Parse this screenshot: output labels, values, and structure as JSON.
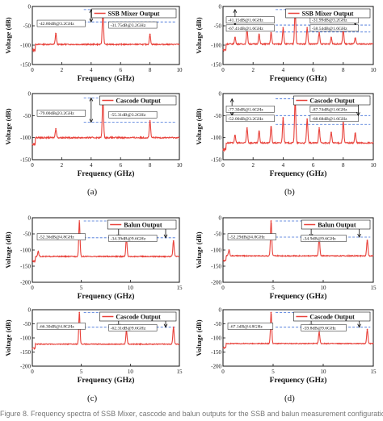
{
  "chart_data": [
    {
      "id": "a_top",
      "type": "line",
      "panel": "a",
      "legend": "SSB Mixer Output",
      "xlabel": "Frequency (GHz)",
      "ylabel": "Voltage (dB)",
      "xlim": [
        0,
        10
      ],
      "ylim": [
        -150,
        0
      ],
      "xticks": [
        0,
        2,
        4,
        6,
        8,
        10
      ],
      "yticks": [
        0,
        -50,
        -100,
        -150
      ],
      "floor": -98,
      "peaks": [
        {
          "x": 1.6,
          "y": -70
        },
        {
          "x": 4.8,
          "y": -8
        },
        {
          "x": 8.0,
          "y": -72
        }
      ],
      "ref_lines": [
        -8,
        -40
      ],
      "arrows": [
        {
          "x": 4.0,
          "y1": -8,
          "y2": -40
        }
      ],
      "annotations": [
        {
          "text": "-42.80dB@3.2GHz"
        },
        {
          "text": "-31.75dB@3.2GHz"
        }
      ]
    },
    {
      "id": "b_top",
      "type": "line",
      "panel": "b",
      "legend": "SSB Mixer Output",
      "xlabel": "Frequency (GHz)",
      "ylabel": "Voltage (dB)",
      "xlim": [
        0,
        10
      ],
      "ylim": [
        -150,
        0
      ],
      "xticks": [
        0,
        2,
        4,
        6,
        8,
        10
      ],
      "yticks": [
        0,
        -50,
        -100,
        -150
      ],
      "floor": -97,
      "peaks": [
        {
          "x": 0.8,
          "y": -80
        },
        {
          "x": 1.6,
          "y": -60
        },
        {
          "x": 2.4,
          "y": -72
        },
        {
          "x": 3.2,
          "y": -68
        },
        {
          "x": 4.0,
          "y": -55
        },
        {
          "x": 4.8,
          "y": -8
        },
        {
          "x": 5.6,
          "y": -55
        },
        {
          "x": 6.4,
          "y": -68
        },
        {
          "x": 7.2,
          "y": -80
        },
        {
          "x": 8.0,
          "y": -58
        },
        {
          "x": 8.8,
          "y": -82
        }
      ],
      "ref_lines": [
        -8,
        -48,
        -66
      ],
      "arrows": [
        {
          "x": 0.8,
          "y1": -8,
          "y2": -48
        },
        {
          "x": 8.8,
          "y1": -8,
          "y2": -48
        }
      ],
      "annotations": [
        {
          "text": "-41.15dB@1.6GHz"
        },
        {
          "text": "-31.99dB@3.2GHz"
        },
        {
          "text": "-67.41dB@1.6GHz"
        },
        {
          "text": "-58.54dB@1.6GHz"
        }
      ]
    },
    {
      "id": "a_bot",
      "type": "line",
      "panel": "a",
      "legend": "Cascode Output",
      "xlabel": "Frequency (GHz)",
      "ylabel": "Voltage (dB)",
      "xlim": [
        0,
        10
      ],
      "ylim": [
        -150,
        0
      ],
      "xticks": [
        0,
        2,
        4,
        6,
        8,
        10
      ],
      "yticks": [
        0,
        -50,
        -100,
        -150
      ],
      "floor": -100,
      "peaks": [
        {
          "x": 1.6,
          "y": -80
        },
        {
          "x": 4.8,
          "y": -10
        },
        {
          "x": 8.0,
          "y": -62
        }
      ],
      "ref_lines": [
        -10,
        -65
      ],
      "arrows": [
        {
          "x": 4.0,
          "y1": -10,
          "y2": -65
        }
      ],
      "annotations": [
        {
          "text": "-79.00dB@3.2GHz"
        },
        {
          "text": "-55.31dB@3.2GHz"
        }
      ]
    },
    {
      "id": "b_bot",
      "type": "line",
      "panel": "b",
      "legend": "Cascode Output",
      "xlabel": "Frequency (GHz)",
      "ylabel": "Voltage (dB)",
      "xlim": [
        0,
        10
      ],
      "ylim": [
        -150,
        0
      ],
      "xticks": [
        0,
        2,
        4,
        6,
        8,
        10
      ],
      "yticks": [
        0,
        -50,
        -100,
        -150
      ],
      "floor": -112,
      "peaks": [
        {
          "x": 0.8,
          "y": -95
        },
        {
          "x": 1.6,
          "y": -78
        },
        {
          "x": 2.4,
          "y": -85
        },
        {
          "x": 3.2,
          "y": -75
        },
        {
          "x": 4.0,
          "y": -55
        },
        {
          "x": 4.8,
          "y": -12
        },
        {
          "x": 5.6,
          "y": -58
        },
        {
          "x": 6.4,
          "y": -78
        },
        {
          "x": 7.2,
          "y": -88
        },
        {
          "x": 8.0,
          "y": -62
        },
        {
          "x": 8.8,
          "y": -90
        }
      ],
      "ref_lines": [
        -12,
        -50,
        -70
      ],
      "arrows": [
        {
          "x": 0.6,
          "y1": -12,
          "y2": -50
        },
        {
          "x": 9.0,
          "y1": -12,
          "y2": -50
        }
      ],
      "annotations": [
        {
          "text": "-77.30dB@1.6GHz"
        },
        {
          "text": "-87.74dB@1.6GHz"
        },
        {
          "text": "-52.00dB@3.2GHz"
        },
        {
          "text": "-68.68dB@1.6GHz"
        }
      ]
    },
    {
      "id": "c_top",
      "type": "line",
      "panel": "c",
      "legend": "Balun Output",
      "xlabel": "Frequency (GHz)",
      "ylabel": "Voltage (dB)",
      "xlim": [
        0,
        15
      ],
      "ylim": [
        -200,
        0
      ],
      "xticks": [
        0,
        5,
        10,
        15
      ],
      "yticks": [
        0,
        -50,
        -100,
        -150,
        -200
      ],
      "floor": -120,
      "peaks": [
        {
          "x": 0.6,
          "y": -105
        },
        {
          "x": 4.8,
          "y": -10
        },
        {
          "x": 9.6,
          "y": -62
        },
        {
          "x": 14.4,
          "y": -72
        }
      ],
      "ref_lines": [
        -10,
        -62
      ],
      "arrows": [
        {
          "x": 8.8,
          "y1": -10,
          "y2": -62
        },
        {
          "x": 13.6,
          "y1": -10,
          "y2": -62
        }
      ],
      "annotations": [
        {
          "text": "-52.36dB@4.8GHz"
        },
        {
          "text": "-34.39dB@9.6GHz"
        }
      ]
    },
    {
      "id": "d_top",
      "type": "line",
      "panel": "d",
      "legend": "Balun Output",
      "xlabel": "Frequency (GHz)",
      "ylabel": "Voltage (dB)",
      "xlim": [
        0,
        15
      ],
      "ylim": [
        -200,
        0
      ],
      "xticks": [
        0,
        5,
        10,
        15
      ],
      "yticks": [
        0,
        -50,
        -100,
        -150,
        -200
      ],
      "floor": -118,
      "peaks": [
        {
          "x": 0.6,
          "y": -100
        },
        {
          "x": 4.8,
          "y": -10
        },
        {
          "x": 9.6,
          "y": -62
        },
        {
          "x": 14.4,
          "y": -70
        }
      ],
      "ref_lines": [
        -10,
        -60
      ],
      "arrows": [
        {
          "x": 8.8,
          "y1": -10,
          "y2": -60
        },
        {
          "x": 13.6,
          "y1": -10,
          "y2": -60
        }
      ],
      "annotations": [
        {
          "text": "-52.29dB@4.8GHz"
        },
        {
          "text": "-34.9dB@9.6GHz"
        }
      ]
    },
    {
      "id": "c_bot",
      "type": "line",
      "panel": "c",
      "legend": "Cascode Output",
      "xlabel": "Frequency (GHz)",
      "ylabel": "Voltage (dB)",
      "xlim": [
        0,
        15
      ],
      "ylim": [
        -200,
        0
      ],
      "xticks": [
        0,
        5,
        10,
        15
      ],
      "yticks": [
        0,
        -50,
        -100,
        -150,
        -200
      ],
      "floor": -122,
      "peaks": [
        {
          "x": 4.8,
          "y": -10
        },
        {
          "x": 9.6,
          "y": -75
        },
        {
          "x": 14.4,
          "y": -62
        }
      ],
      "ref_lines": [
        -10,
        -62
      ],
      "arrows": [
        {
          "x": 8.8,
          "y1": -10,
          "y2": -62
        },
        {
          "x": 13.6,
          "y1": -10,
          "y2": -62
        }
      ],
      "annotations": [
        {
          "text": "-66.30dB@4.8GHz"
        },
        {
          "text": "-62.31dB@9.6GHz"
        }
      ]
    },
    {
      "id": "d_bot",
      "type": "line",
      "panel": "d",
      "legend": "Cascode Output",
      "xlabel": "Frequency (GHz)",
      "ylabel": "Voltage (dB)",
      "xlim": [
        0,
        15
      ],
      "ylim": [
        -200,
        0
      ],
      "xticks": [
        0,
        5,
        10,
        15
      ],
      "yticks": [
        0,
        -50,
        -100,
        -150,
        -200
      ],
      "floor": -120,
      "peaks": [
        {
          "x": 4.8,
          "y": -10
        },
        {
          "x": 9.6,
          "y": -80
        },
        {
          "x": 14.4,
          "y": -70
        }
      ],
      "ref_lines": [
        -10,
        -62
      ],
      "arrows": [
        {
          "x": 8.8,
          "y1": -10,
          "y2": -62
        },
        {
          "x": 13.6,
          "y1": -10,
          "y2": -62
        }
      ],
      "annotations": [
        {
          "text": "-67.1dB@4.8GHz"
        },
        {
          "text": "-59.8dB@9.6GHz"
        }
      ]
    }
  ],
  "labels": {
    "a": "(a)",
    "b": "(b)",
    "c": "(c)",
    "d": "(d)"
  },
  "caption": "Figure 8. Frequency spectra of SSB Mixer, cascode and balun outputs for the SSB and balun measurement configurations.",
  "colors": {
    "trace": "#e8413a",
    "ref": "#3f6fd8",
    "axis": "#111111"
  }
}
